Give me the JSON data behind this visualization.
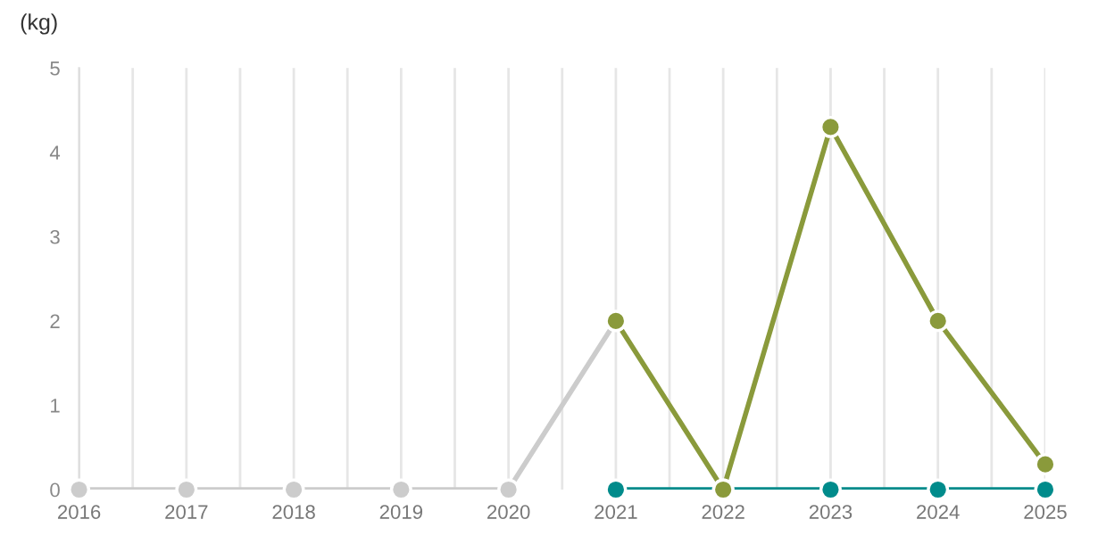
{
  "chart_data": {
    "type": "line",
    "ylabel": "(kg)",
    "series": [
      {
        "color": "#cccccc",
        "x": [
          2016,
          2017,
          2018,
          2019,
          2020,
          2021
        ],
        "values": [
          0,
          0,
          0,
          0,
          0,
          2
        ]
      },
      {
        "color": "#008b8b",
        "x": [
          2021,
          2022,
          2023,
          2024,
          2025
        ],
        "values": [
          0,
          0,
          0,
          0,
          0
        ]
      },
      {
        "color": "#8a9a3b",
        "x": [
          2021,
          2022,
          2023,
          2024,
          2025
        ],
        "values": [
          2,
          0,
          4.3,
          2,
          0.3
        ]
      }
    ],
    "xlim": [
      2016,
      2025
    ],
    "ylim": [
      0,
      5
    ],
    "xticks": [
      2016,
      {
        "value": 2016.5,
        "label": null
      },
      2017,
      {
        "value": 2017.5,
        "label": null
      },
      2018,
      {
        "value": 2018.5,
        "label": null
      },
      2019,
      {
        "value": 2019.5,
        "label": null
      },
      2020,
      {
        "value": 2020.5,
        "label": null
      },
      2021,
      {
        "value": 2021.5,
        "label": null
      },
      2022,
      {
        "value": 2022.5,
        "label": null
      },
      2023,
      {
        "value": 2023.5,
        "label": null
      },
      2024,
      {
        "value": 2024.5,
        "label": null
      },
      2025
    ],
    "yticks": [
      0,
      1,
      2,
      3,
      4,
      5
    ],
    "grid": "x",
    "marker": "circle"
  }
}
